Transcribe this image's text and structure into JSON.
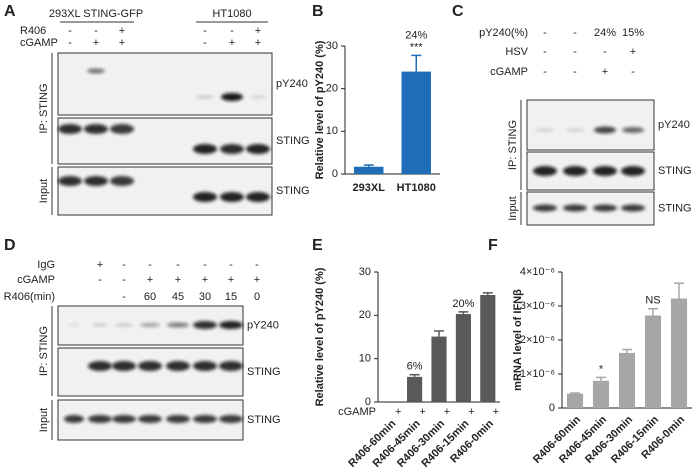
{
  "panels": {
    "A": {
      "label": "A",
      "header": [
        "293XL STING-GFP",
        "HT1080"
      ],
      "rows": [
        {
          "name": "R406",
          "cells": [
            "-",
            "-",
            "+",
            "-",
            "-",
            "+"
          ]
        },
        {
          "name": "cGAMP",
          "cells": [
            "-",
            "+",
            "+",
            "-",
            "+",
            "+"
          ]
        }
      ],
      "blot_labels": [
        "pY240",
        "STING",
        "STING"
      ],
      "ip_label": "IP:  STING",
      "input_label": "Input"
    },
    "C": {
      "label": "C",
      "rows": [
        {
          "name": "pY240(%)",
          "cells": [
            "-",
            "-",
            "24%",
            "15%"
          ]
        },
        {
          "name": "HSV",
          "cells": [
            "-",
            "-",
            "-",
            "+"
          ]
        },
        {
          "name": "cGAMP",
          "cells": [
            "-",
            "-",
            "+",
            "-"
          ]
        }
      ],
      "blot_labels": [
        "pY240",
        "STING",
        "STING"
      ],
      "ip_label": "IP:  STING",
      "input_label": "Input"
    },
    "D": {
      "label": "D",
      "rows": [
        {
          "name": "IgG",
          "cells": [
            "+",
            "-",
            "-",
            "-",
            "-",
            "-",
            "-"
          ]
        },
        {
          "name": "cGAMP",
          "cells": [
            "-",
            "-",
            "+",
            "+",
            "+",
            "+",
            "+"
          ]
        },
        {
          "name": "R406(min)",
          "cells": [
            null,
            "-",
            "60",
            "45",
            "30",
            "15",
            "0"
          ]
        }
      ],
      "blot_labels": [
        "pY240",
        "STING",
        "STING"
      ],
      "ip_label": "IP:  STING",
      "input_label": "Input"
    }
  },
  "chart_data": [
    {
      "type": "bar",
      "panel_label": "B",
      "ylabel": "Relative level of pY240 (%)",
      "categories": [
        "293XL",
        "HT1080"
      ],
      "values": [
        1.7,
        24
      ],
      "errors": [
        0.4,
        3.8
      ],
      "value_labels": [
        null,
        "24%"
      ],
      "significance": [
        null,
        "***"
      ],
      "color": "#1f6db8",
      "ylim": [
        0,
        30
      ],
      "yticks": [
        0,
        10,
        20,
        30
      ]
    },
    {
      "type": "bar",
      "panel_label": "E",
      "ylabel": "Relative level of pY240 (%)",
      "categories": [
        "R406-60min",
        "R406-45min",
        "R406-30min",
        "R406-15min",
        "R406-0min"
      ],
      "values": [
        0,
        5.8,
        15.1,
        20.3,
        24.7
      ],
      "errors": [
        0,
        0.5,
        1.3,
        0.5,
        0.5
      ],
      "value_labels": [
        null,
        "6%",
        null,
        "20%",
        null
      ],
      "treatment": {
        "name": "cGAMP",
        "cells": [
          "+",
          "+",
          "+",
          "+",
          "+"
        ]
      },
      "color": "#595959",
      "ylim": [
        0,
        30
      ],
      "yticks": [
        0,
        10,
        20,
        30
      ]
    },
    {
      "type": "bar",
      "panel_label": "F",
      "ylabel": "mRNA level of IFNβ",
      "categories": [
        "R406-60min",
        "R406-45min",
        "R406-30min",
        "R406-15min",
        "R406-0min"
      ],
      "values": [
        4.2e-07,
        8e-07,
        1.62e-06,
        2.72e-06,
        3.22e-06
      ],
      "errors": [
        2e-08,
        1e-07,
        1e-07,
        2e-07,
        4.5e-07
      ],
      "significance": [
        null,
        "*",
        null,
        "NS",
        null
      ],
      "color": "#a6a6a6",
      "ylim": [
        0,
        4e-06
      ],
      "yticks": [
        0,
        {
          "value": 1e-06,
          "label": "1×10⁻⁶"
        },
        {
          "value": 2e-06,
          "label": "2×10⁻⁶"
        },
        {
          "value": 3e-06,
          "label": "3×10⁻⁶"
        },
        {
          "value": 4e-06,
          "label": "4×10⁻⁶"
        }
      ]
    }
  ]
}
